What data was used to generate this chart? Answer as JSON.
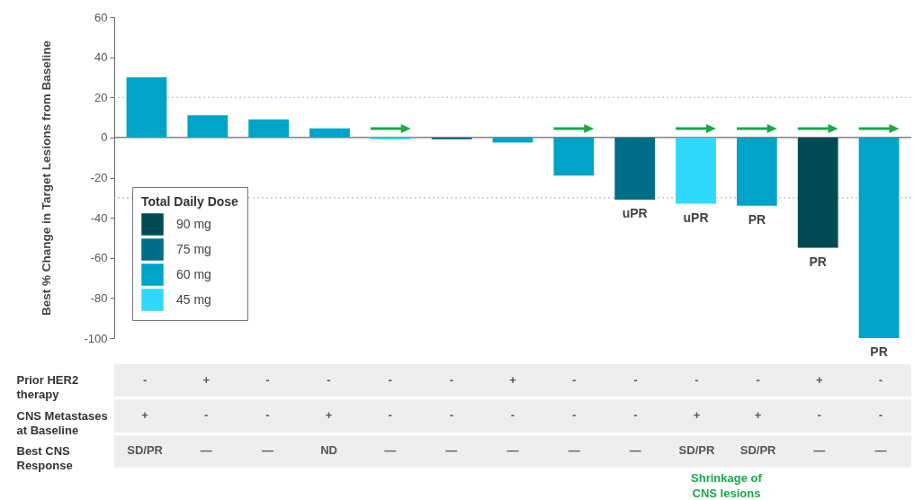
{
  "chart_data": [
    {
      "type": "bar",
      "ylabel": "Best % Change in Target Lesions from Baseline",
      "legend_title": "Total Daily Dose",
      "legend": "bottom left",
      "categories": [
        null,
        null,
        null,
        null,
        null,
        null,
        null,
        null,
        null,
        null,
        null,
        null,
        null
      ],
      "series": [
        {
          "name": "90 mg",
          "color": "#004b53",
          "values": [
            null,
            null,
            null,
            null,
            null,
            null,
            null,
            null,
            null,
            null,
            null,
            -55,
            null
          ],
          "value_labels": [
            null,
            null,
            null,
            null,
            null,
            null,
            null,
            null,
            null,
            null,
            null,
            "PR",
            null
          ]
        },
        {
          "name": "75 mg",
          "color": "#006e87",
          "values": [
            null,
            null,
            null,
            null,
            null,
            -1,
            null,
            null,
            -31,
            null,
            null,
            null,
            null
          ],
          "value_labels": [
            null,
            null,
            null,
            null,
            null,
            null,
            null,
            null,
            "uPR",
            null,
            null,
            null,
            null
          ]
        },
        {
          "name": "60 mg",
          "color": "#00a3c8",
          "values": [
            30,
            11,
            9,
            4.5,
            null,
            null,
            -2.5,
            -19,
            null,
            null,
            -34,
            null,
            -100
          ],
          "value_labels": [
            null,
            null,
            null,
            null,
            null,
            null,
            null,
            null,
            null,
            null,
            "PR",
            null,
            "PR"
          ]
        },
        {
          "name": "45 mg",
          "color": "#30d8fc",
          "values": [
            null,
            null,
            null,
            null,
            -1,
            null,
            null,
            null,
            null,
            -33,
            null,
            null,
            null
          ],
          "value_labels": [
            null,
            null,
            null,
            null,
            null,
            null,
            null,
            null,
            null,
            "uPR",
            null,
            null,
            null
          ]
        }
      ],
      "ylim": [
        -100,
        60
      ],
      "yticks": [
        -100,
        -80,
        -60,
        -40,
        -20,
        0,
        20,
        40,
        60
      ],
      "ref_lines": [
        {
          "axis": "y",
          "value": 20,
          "color": "#bbbbbb",
          "line_style": "dotted"
        },
        {
          "axis": "y",
          "value": -30,
          "color": "#bbbbbb",
          "line_style": "dotted"
        },
        {
          "axis": "y",
          "value": 0,
          "color": "#666666",
          "line_style": "solid"
        }
      ]
    },
    {
      "type": "other",
      "categories": [
        null,
        null,
        null,
        null,
        null,
        null,
        null,
        null,
        null,
        null,
        null,
        null,
        null
      ],
      "y_categories": [
        "Prior HER2 therapy",
        "CNS Metastases at Baseline",
        "Best CNS Response"
      ],
      "cell_labels": [
        [
          "-",
          "+",
          "-",
          "-",
          "-",
          "-",
          "+",
          "-",
          "-",
          "-",
          "-",
          "+",
          "-"
        ],
        [
          "+",
          "-",
          "-",
          "+",
          "-",
          "-",
          "-",
          "-",
          "-",
          "+",
          "+",
          "-",
          "-"
        ],
        [
          "SD/PR",
          "—",
          "—",
          "ND",
          "—",
          "—",
          "—",
          "—",
          "—",
          "SD/PR",
          "SD/PR",
          "—",
          "—"
        ]
      ],
      "annotations": [
        "Shrinkage of CNS lesions"
      ]
    }
  ]
}
